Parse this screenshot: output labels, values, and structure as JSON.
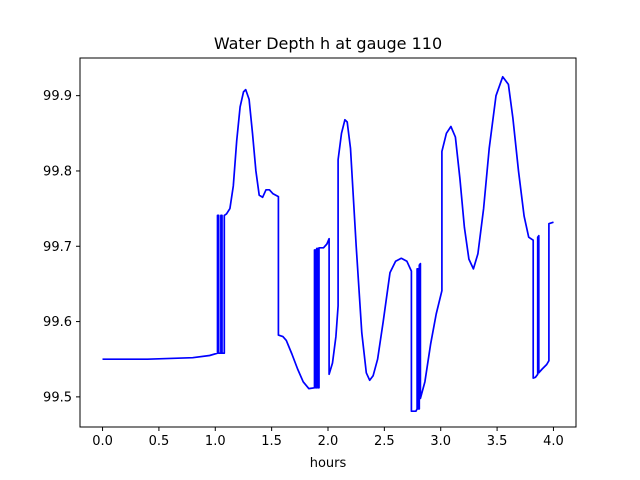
{
  "chart_data": {
    "type": "line",
    "title": "Water Depth h at gauge 110",
    "xlabel": "hours",
    "ylabel": "",
    "xlim": [
      -0.2,
      4.2
    ],
    "ylim": [
      99.46,
      99.95
    ],
    "x_ticks": [
      {
        "value": 0.0,
        "label": "0.0"
      },
      {
        "value": 0.5,
        "label": "0.5"
      },
      {
        "value": 1.0,
        "label": "1.0"
      },
      {
        "value": 1.5,
        "label": "1.5"
      },
      {
        "value": 2.0,
        "label": "2.0"
      },
      {
        "value": 2.5,
        "label": "2.5"
      },
      {
        "value": 3.0,
        "label": "3.0"
      },
      {
        "value": 3.5,
        "label": "3.5"
      },
      {
        "value": 4.0,
        "label": "4.0"
      }
    ],
    "y_ticks": [
      {
        "value": 99.5,
        "label": "99.5"
      },
      {
        "value": 99.6,
        "label": "99.6"
      },
      {
        "value": 99.7,
        "label": "99.7"
      },
      {
        "value": 99.8,
        "label": "99.8"
      },
      {
        "value": 99.9,
        "label": "99.9"
      }
    ],
    "grid": false,
    "legend": "none",
    "series": [
      {
        "color": "#0000ff",
        "points": [
          [
            0.0,
            99.55
          ],
          [
            0.4,
            99.55
          ],
          [
            0.8,
            99.552
          ],
          [
            0.95,
            99.555
          ],
          [
            1.02,
            99.558
          ],
          [
            1.02,
            99.741
          ],
          [
            1.03,
            99.741
          ],
          [
            1.03,
            99.558
          ],
          [
            1.05,
            99.558
          ],
          [
            1.05,
            99.741
          ],
          [
            1.06,
            99.741
          ],
          [
            1.06,
            99.558
          ],
          [
            1.08,
            99.558
          ],
          [
            1.08,
            99.741
          ],
          [
            1.1,
            99.743
          ],
          [
            1.13,
            99.75
          ],
          [
            1.16,
            99.78
          ],
          [
            1.19,
            99.84
          ],
          [
            1.22,
            99.885
          ],
          [
            1.25,
            99.905
          ],
          [
            1.27,
            99.908
          ],
          [
            1.3,
            99.895
          ],
          [
            1.33,
            99.85
          ],
          [
            1.36,
            99.8
          ],
          [
            1.39,
            99.768
          ],
          [
            1.42,
            99.765
          ],
          [
            1.45,
            99.775
          ],
          [
            1.48,
            99.775
          ],
          [
            1.51,
            99.77
          ],
          [
            1.56,
            99.766
          ],
          [
            1.56,
            99.582
          ],
          [
            1.6,
            99.58
          ],
          [
            1.63,
            99.575
          ],
          [
            1.68,
            99.557
          ],
          [
            1.73,
            99.537
          ],
          [
            1.78,
            99.52
          ],
          [
            1.83,
            99.511
          ],
          [
            1.88,
            99.512
          ],
          [
            1.88,
            99.695
          ],
          [
            1.89,
            99.695
          ],
          [
            1.89,
            99.512
          ],
          [
            1.9,
            99.512
          ],
          [
            1.9,
            99.697
          ],
          [
            1.91,
            99.697
          ],
          [
            1.91,
            99.512
          ],
          [
            1.92,
            99.512
          ],
          [
            1.92,
            99.698
          ],
          [
            1.96,
            99.698
          ],
          [
            1.99,
            99.703
          ],
          [
            2.01,
            99.71
          ],
          [
            2.01,
            99.53
          ],
          [
            2.04,
            99.545
          ],
          [
            2.07,
            99.58
          ],
          [
            2.09,
            99.621
          ],
          [
            2.09,
            99.815
          ],
          [
            2.12,
            99.85
          ],
          [
            2.15,
            99.868
          ],
          [
            2.17,
            99.865
          ],
          [
            2.2,
            99.83
          ],
          [
            2.25,
            99.7
          ],
          [
            2.3,
            99.585
          ],
          [
            2.34,
            99.532
          ],
          [
            2.37,
            99.522
          ],
          [
            2.4,
            99.528
          ],
          [
            2.44,
            99.55
          ],
          [
            2.49,
            99.6
          ],
          [
            2.55,
            99.665
          ],
          [
            2.6,
            99.68
          ],
          [
            2.65,
            99.684
          ],
          [
            2.7,
            99.68
          ],
          [
            2.74,
            99.667
          ],
          [
            2.74,
            99.481
          ],
          [
            2.78,
            99.481
          ],
          [
            2.79,
            99.484
          ],
          [
            2.79,
            99.67
          ],
          [
            2.8,
            99.67
          ],
          [
            2.8,
            99.484
          ],
          [
            2.81,
            99.484
          ],
          [
            2.81,
            99.675
          ],
          [
            2.82,
            99.677
          ],
          [
            2.82,
            99.498
          ],
          [
            2.86,
            99.52
          ],
          [
            2.91,
            99.57
          ],
          [
            2.96,
            99.61
          ],
          [
            3.01,
            99.641
          ],
          [
            3.01,
            99.826
          ],
          [
            3.05,
            99.85
          ],
          [
            3.09,
            99.859
          ],
          [
            3.13,
            99.845
          ],
          [
            3.17,
            99.79
          ],
          [
            3.21,
            99.725
          ],
          [
            3.25,
            99.683
          ],
          [
            3.29,
            99.67
          ],
          [
            3.33,
            99.69
          ],
          [
            3.38,
            99.75
          ],
          [
            3.43,
            99.83
          ],
          [
            3.49,
            99.9
          ],
          [
            3.55,
            99.925
          ],
          [
            3.6,
            99.915
          ],
          [
            3.64,
            99.87
          ],
          [
            3.69,
            99.8
          ],
          [
            3.74,
            99.74
          ],
          [
            3.78,
            99.712
          ],
          [
            3.82,
            99.708
          ],
          [
            3.82,
            99.525
          ],
          [
            3.84,
            99.526
          ],
          [
            3.86,
            99.53
          ],
          [
            3.86,
            99.712
          ],
          [
            3.87,
            99.714
          ],
          [
            3.87,
            99.532
          ],
          [
            3.9,
            99.537
          ],
          [
            3.94,
            99.543
          ],
          [
            3.96,
            99.548
          ],
          [
            3.96,
            99.73
          ],
          [
            4.0,
            99.732
          ]
        ]
      }
    ]
  }
}
